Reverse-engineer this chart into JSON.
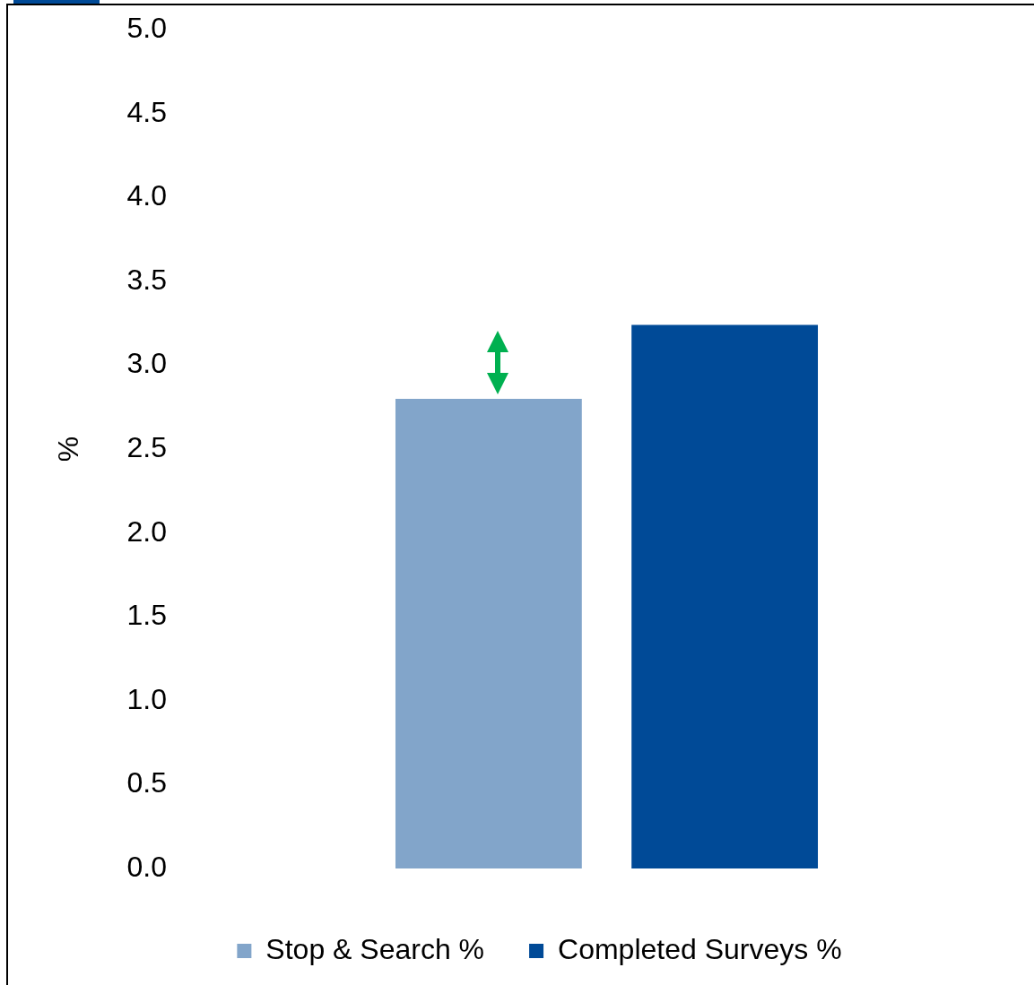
{
  "chart_data": {
    "type": "bar",
    "categories": [
      null
    ],
    "series": [
      {
        "name": "Stop & Search %",
        "color": "#82a5ca",
        "values": [
          2.8
        ]
      },
      {
        "name": "Completed Surveys %",
        "color": "#004a97",
        "values": [
          3.24
        ]
      }
    ],
    "ylabel": "%",
    "ylim": [
      0,
      5
    ],
    "yticks": [
      {
        "value": 0,
        "label": "0.0"
      },
      0.5,
      {
        "value": 1,
        "label": "1.0"
      },
      1.5,
      {
        "value": 2,
        "label": "2.0"
      },
      2.5,
      {
        "value": 3,
        "label": "3.0"
      },
      3.5,
      {
        "value": 4,
        "label": "4.0"
      },
      4.5,
      {
        "value": 5,
        "label": "5.0"
      }
    ],
    "tick_labels": "y",
    "legend": "bottom"
  }
}
